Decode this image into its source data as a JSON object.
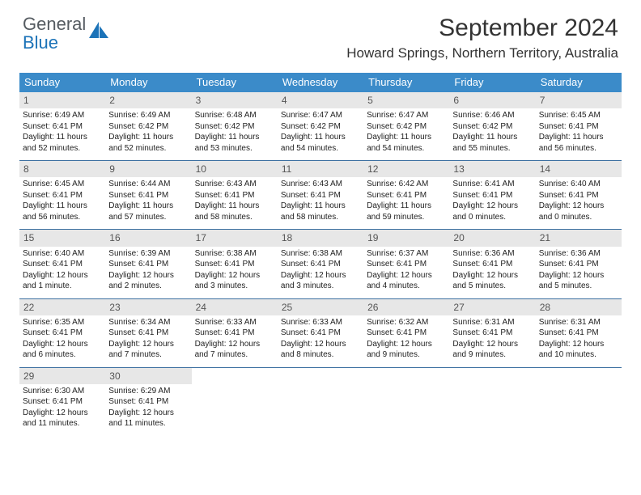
{
  "brand": {
    "word1": "General",
    "word2": "Blue"
  },
  "title": "September 2024",
  "location": "Howard Springs, Northern Territory, Australia",
  "colors": {
    "header_bg": "#3b8bc9",
    "week_divider": "#3b6fa0",
    "daynum_bg": "#e7e7e7",
    "text": "#222222",
    "brand_gray": "#555b61",
    "brand_blue": "#1c73b8"
  },
  "day_headers": [
    "Sunday",
    "Monday",
    "Tuesday",
    "Wednesday",
    "Thursday",
    "Friday",
    "Saturday"
  ],
  "weeks": [
    [
      {
        "n": "1",
        "sr": "Sunrise: 6:49 AM",
        "ss": "Sunset: 6:41 PM",
        "dl": "Daylight: 11 hours and 52 minutes."
      },
      {
        "n": "2",
        "sr": "Sunrise: 6:49 AM",
        "ss": "Sunset: 6:42 PM",
        "dl": "Daylight: 11 hours and 52 minutes."
      },
      {
        "n": "3",
        "sr": "Sunrise: 6:48 AM",
        "ss": "Sunset: 6:42 PM",
        "dl": "Daylight: 11 hours and 53 minutes."
      },
      {
        "n": "4",
        "sr": "Sunrise: 6:47 AM",
        "ss": "Sunset: 6:42 PM",
        "dl": "Daylight: 11 hours and 54 minutes."
      },
      {
        "n": "5",
        "sr": "Sunrise: 6:47 AM",
        "ss": "Sunset: 6:42 PM",
        "dl": "Daylight: 11 hours and 54 minutes."
      },
      {
        "n": "6",
        "sr": "Sunrise: 6:46 AM",
        "ss": "Sunset: 6:42 PM",
        "dl": "Daylight: 11 hours and 55 minutes."
      },
      {
        "n": "7",
        "sr": "Sunrise: 6:45 AM",
        "ss": "Sunset: 6:41 PM",
        "dl": "Daylight: 11 hours and 56 minutes."
      }
    ],
    [
      {
        "n": "8",
        "sr": "Sunrise: 6:45 AM",
        "ss": "Sunset: 6:41 PM",
        "dl": "Daylight: 11 hours and 56 minutes."
      },
      {
        "n": "9",
        "sr": "Sunrise: 6:44 AM",
        "ss": "Sunset: 6:41 PM",
        "dl": "Daylight: 11 hours and 57 minutes."
      },
      {
        "n": "10",
        "sr": "Sunrise: 6:43 AM",
        "ss": "Sunset: 6:41 PM",
        "dl": "Daylight: 11 hours and 58 minutes."
      },
      {
        "n": "11",
        "sr": "Sunrise: 6:43 AM",
        "ss": "Sunset: 6:41 PM",
        "dl": "Daylight: 11 hours and 58 minutes."
      },
      {
        "n": "12",
        "sr": "Sunrise: 6:42 AM",
        "ss": "Sunset: 6:41 PM",
        "dl": "Daylight: 11 hours and 59 minutes."
      },
      {
        "n": "13",
        "sr": "Sunrise: 6:41 AM",
        "ss": "Sunset: 6:41 PM",
        "dl": "Daylight: 12 hours and 0 minutes."
      },
      {
        "n": "14",
        "sr": "Sunrise: 6:40 AM",
        "ss": "Sunset: 6:41 PM",
        "dl": "Daylight: 12 hours and 0 minutes."
      }
    ],
    [
      {
        "n": "15",
        "sr": "Sunrise: 6:40 AM",
        "ss": "Sunset: 6:41 PM",
        "dl": "Daylight: 12 hours and 1 minute."
      },
      {
        "n": "16",
        "sr": "Sunrise: 6:39 AM",
        "ss": "Sunset: 6:41 PM",
        "dl": "Daylight: 12 hours and 2 minutes."
      },
      {
        "n": "17",
        "sr": "Sunrise: 6:38 AM",
        "ss": "Sunset: 6:41 PM",
        "dl": "Daylight: 12 hours and 3 minutes."
      },
      {
        "n": "18",
        "sr": "Sunrise: 6:38 AM",
        "ss": "Sunset: 6:41 PM",
        "dl": "Daylight: 12 hours and 3 minutes."
      },
      {
        "n": "19",
        "sr": "Sunrise: 6:37 AM",
        "ss": "Sunset: 6:41 PM",
        "dl": "Daylight: 12 hours and 4 minutes."
      },
      {
        "n": "20",
        "sr": "Sunrise: 6:36 AM",
        "ss": "Sunset: 6:41 PM",
        "dl": "Daylight: 12 hours and 5 minutes."
      },
      {
        "n": "21",
        "sr": "Sunrise: 6:36 AM",
        "ss": "Sunset: 6:41 PM",
        "dl": "Daylight: 12 hours and 5 minutes."
      }
    ],
    [
      {
        "n": "22",
        "sr": "Sunrise: 6:35 AM",
        "ss": "Sunset: 6:41 PM",
        "dl": "Daylight: 12 hours and 6 minutes."
      },
      {
        "n": "23",
        "sr": "Sunrise: 6:34 AM",
        "ss": "Sunset: 6:41 PM",
        "dl": "Daylight: 12 hours and 7 minutes."
      },
      {
        "n": "24",
        "sr": "Sunrise: 6:33 AM",
        "ss": "Sunset: 6:41 PM",
        "dl": "Daylight: 12 hours and 7 minutes."
      },
      {
        "n": "25",
        "sr": "Sunrise: 6:33 AM",
        "ss": "Sunset: 6:41 PM",
        "dl": "Daylight: 12 hours and 8 minutes."
      },
      {
        "n": "26",
        "sr": "Sunrise: 6:32 AM",
        "ss": "Sunset: 6:41 PM",
        "dl": "Daylight: 12 hours and 9 minutes."
      },
      {
        "n": "27",
        "sr": "Sunrise: 6:31 AM",
        "ss": "Sunset: 6:41 PM",
        "dl": "Daylight: 12 hours and 9 minutes."
      },
      {
        "n": "28",
        "sr": "Sunrise: 6:31 AM",
        "ss": "Sunset: 6:41 PM",
        "dl": "Daylight: 12 hours and 10 minutes."
      }
    ],
    [
      {
        "n": "29",
        "sr": "Sunrise: 6:30 AM",
        "ss": "Sunset: 6:41 PM",
        "dl": "Daylight: 12 hours and 11 minutes."
      },
      {
        "n": "30",
        "sr": "Sunrise: 6:29 AM",
        "ss": "Sunset: 6:41 PM",
        "dl": "Daylight: 12 hours and 11 minutes."
      },
      null,
      null,
      null,
      null,
      null
    ]
  ]
}
